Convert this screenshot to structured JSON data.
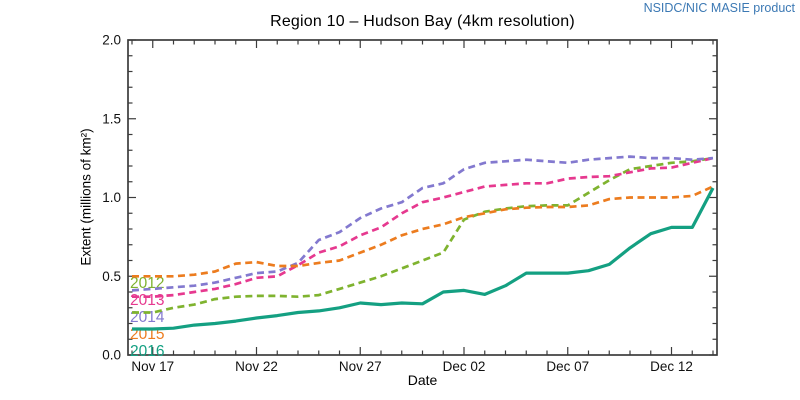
{
  "header": {
    "product_label": "NSIDC/NIC MASIE product",
    "product_color": "#3c79b4"
  },
  "colors": {
    "axis": "#3c3c3c",
    "tick_label": "#111111",
    "background": "#ffffff"
  },
  "chart_data": {
    "type": "line",
    "title": "Region 10 – Hudson Bay (4km resolution)",
    "xlabel": "Date",
    "ylabel": "Extent (millions of km²)",
    "ylim": [
      0.0,
      2.0
    ],
    "y_major_ticks": [
      0.0,
      0.5,
      1.0,
      1.5,
      2.0
    ],
    "y_tick_labels": [
      "0.0",
      "0.5",
      "1.0",
      "1.5",
      "2.0"
    ],
    "y_minor_step": 0.1,
    "grid": false,
    "legend_position": "inside-lower-left",
    "x_dates": [
      "Nov 16",
      "Nov 17",
      "Nov 18",
      "Nov 19",
      "Nov 20",
      "Nov 21",
      "Nov 22",
      "Nov 23",
      "Nov 24",
      "Nov 25",
      "Nov 26",
      "Nov 27",
      "Nov 28",
      "Nov 29",
      "Nov 30",
      "Dec 01",
      "Dec 02",
      "Dec 03",
      "Dec 04",
      "Dec 05",
      "Dec 06",
      "Dec 07",
      "Dec 08",
      "Dec 09",
      "Dec 10",
      "Dec 11",
      "Dec 12",
      "Dec 13",
      "Dec 14"
    ],
    "x_major_tick_indices": [
      1,
      6,
      11,
      16,
      21,
      26
    ],
    "x_major_tick_labels": [
      "Nov 17",
      "Nov 22",
      "Nov 27",
      "Dec 02",
      "Dec 07",
      "Dec 12"
    ],
    "series": [
      {
        "name": "2012",
        "color": "#7fb32f",
        "style": "dashed",
        "values": [
          0.27,
          0.27,
          0.3,
          0.32,
          0.355,
          0.37,
          0.375,
          0.375,
          0.37,
          0.38,
          0.42,
          0.46,
          0.5,
          0.55,
          0.6,
          0.65,
          0.86,
          0.91,
          0.93,
          0.945,
          0.95,
          0.95,
          1.03,
          1.11,
          1.18,
          1.2,
          1.22,
          1.23,
          1.25
        ]
      },
      {
        "name": "2013",
        "color": "#e6398f",
        "style": "dashed",
        "values": [
          0.37,
          0.37,
          0.38,
          0.4,
          0.42,
          0.45,
          0.49,
          0.5,
          0.57,
          0.65,
          0.69,
          0.76,
          0.81,
          0.9,
          0.97,
          1.0,
          1.035,
          1.07,
          1.08,
          1.09,
          1.09,
          1.12,
          1.13,
          1.135,
          1.16,
          1.185,
          1.19,
          1.22,
          1.25
        ]
      },
      {
        "name": "2014",
        "color": "#8379cf",
        "style": "dashed",
        "values": [
          0.41,
          0.42,
          0.43,
          0.44,
          0.46,
          0.49,
          0.52,
          0.53,
          0.585,
          0.73,
          0.78,
          0.87,
          0.93,
          0.97,
          1.06,
          1.09,
          1.18,
          1.22,
          1.23,
          1.24,
          1.23,
          1.22,
          1.24,
          1.25,
          1.26,
          1.25,
          1.25,
          1.24,
          1.25
        ]
      },
      {
        "name": "2015",
        "color": "#ec7c1f",
        "style": "dashed",
        "values": [
          0.5,
          0.5,
          0.5,
          0.51,
          0.53,
          0.58,
          0.59,
          0.565,
          0.565,
          0.585,
          0.6,
          0.65,
          0.7,
          0.76,
          0.8,
          0.83,
          0.875,
          0.9,
          0.925,
          0.935,
          0.94,
          0.94,
          0.95,
          0.99,
          1.0,
          1.0,
          1.0,
          1.01,
          1.07
        ]
      },
      {
        "name": "2016",
        "color": "#14a082",
        "style": "solid",
        "values": [
          0.165,
          0.165,
          0.17,
          0.19,
          0.2,
          0.215,
          0.235,
          0.25,
          0.27,
          0.28,
          0.3,
          0.33,
          0.32,
          0.33,
          0.325,
          0.4,
          0.41,
          0.385,
          0.44,
          0.52,
          0.52,
          0.52,
          0.535,
          0.575,
          0.68,
          0.77,
          0.81,
          0.81,
          1.06
        ]
      }
    ]
  }
}
